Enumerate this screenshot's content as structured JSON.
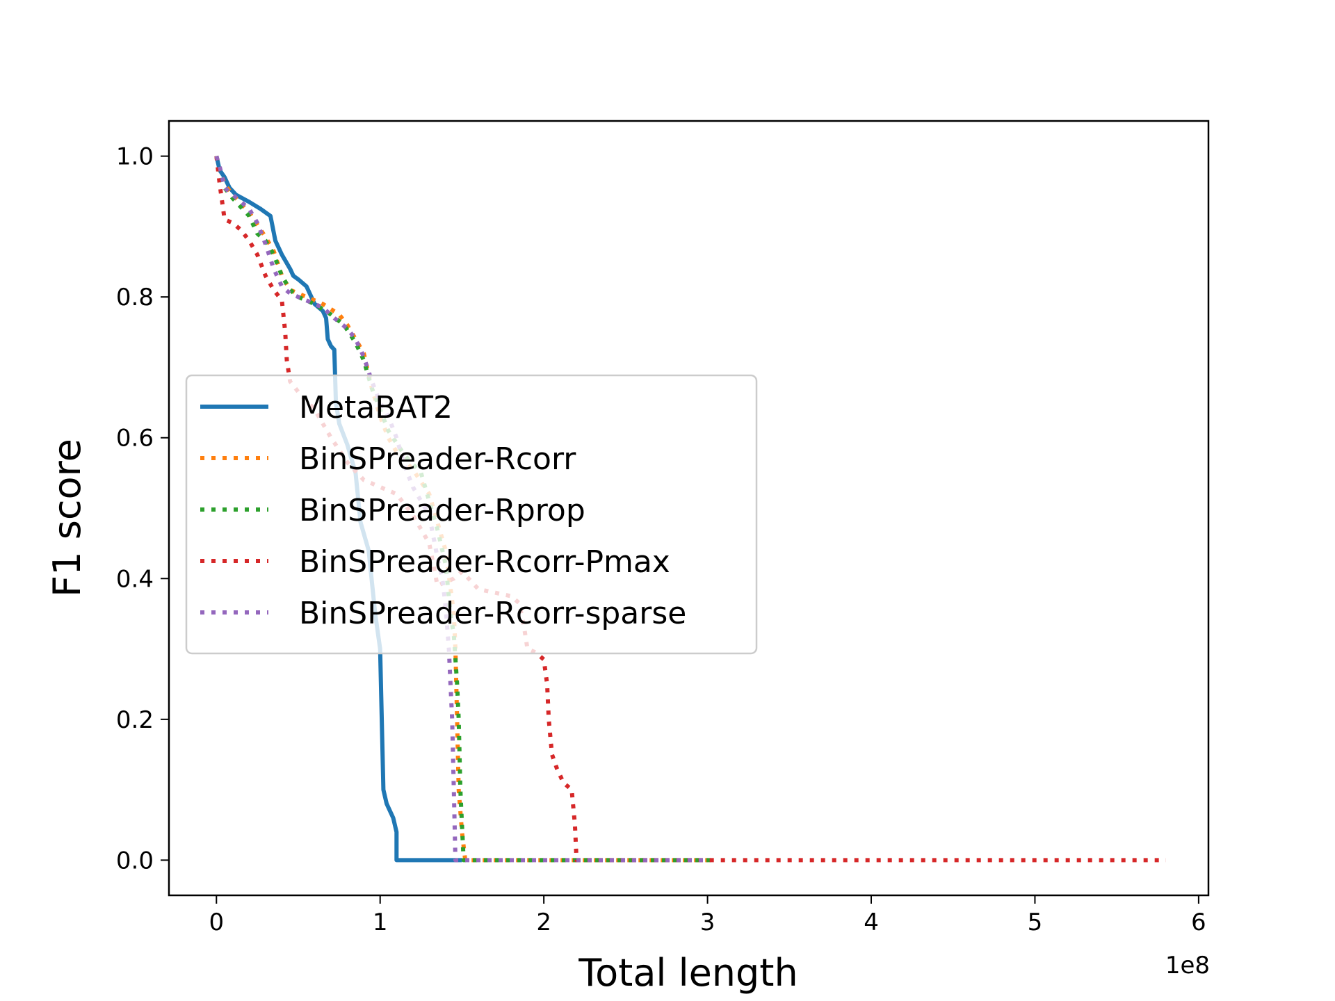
{
  "chart_data": {
    "type": "line",
    "title": "",
    "xlabel": "Total length",
    "ylabel": "F1 score",
    "x_offset_label": "1e8",
    "xlim": [
      -0.29,
      6.06
    ],
    "ylim": [
      -0.05,
      1.05
    ],
    "x_ticks": [
      0,
      1,
      2,
      3,
      4,
      5,
      6
    ],
    "x_tick_labels": [
      "0",
      "1",
      "2",
      "3",
      "4",
      "5",
      "6"
    ],
    "y_ticks": [
      0.0,
      0.2,
      0.4,
      0.6,
      0.8,
      1.0
    ],
    "y_tick_labels": [
      "0.0",
      "0.2",
      "0.4",
      "0.6",
      "0.8",
      "1.0"
    ],
    "grid": false,
    "legend_position": "center-left",
    "series": [
      {
        "name": "MetaBAT2",
        "color": "#1f77b4",
        "style": "solid",
        "points": [
          [
            0,
            1.0
          ],
          [
            0.02,
            0.98
          ],
          [
            0.05,
            0.97
          ],
          [
            0.08,
            0.955
          ],
          [
            0.12,
            0.945
          ],
          [
            0.2,
            0.935
          ],
          [
            0.27,
            0.925
          ],
          [
            0.33,
            0.915
          ],
          [
            0.36,
            0.88
          ],
          [
            0.4,
            0.86
          ],
          [
            0.45,
            0.84
          ],
          [
            0.47,
            0.83
          ],
          [
            0.5,
            0.825
          ],
          [
            0.55,
            0.815
          ],
          [
            0.58,
            0.8
          ],
          [
            0.6,
            0.79
          ],
          [
            0.65,
            0.78
          ],
          [
            0.67,
            0.77
          ],
          [
            0.68,
            0.74
          ],
          [
            0.7,
            0.73
          ],
          [
            0.72,
            0.725
          ],
          [
            0.73,
            0.65
          ],
          [
            0.75,
            0.62
          ],
          [
            0.8,
            0.59
          ],
          [
            0.85,
            0.55
          ],
          [
            0.88,
            0.48
          ],
          [
            0.93,
            0.44
          ],
          [
            0.97,
            0.35
          ],
          [
            1.0,
            0.3
          ],
          [
            1.02,
            0.1
          ],
          [
            1.04,
            0.08
          ],
          [
            1.08,
            0.06
          ],
          [
            1.1,
            0.04
          ],
          [
            1.1,
            0.0
          ],
          [
            1.5,
            0.0
          ]
        ]
      },
      {
        "name": "BinSPreader-Rcorr",
        "color": "#ff7f0e",
        "style": "dotted",
        "points": [
          [
            0,
            1.0
          ],
          [
            0.02,
            0.98
          ],
          [
            0.05,
            0.96
          ],
          [
            0.1,
            0.945
          ],
          [
            0.2,
            0.92
          ],
          [
            0.3,
            0.885
          ],
          [
            0.35,
            0.865
          ],
          [
            0.4,
            0.83
          ],
          [
            0.45,
            0.81
          ],
          [
            0.55,
            0.8
          ],
          [
            0.65,
            0.79
          ],
          [
            0.75,
            0.775
          ],
          [
            0.8,
            0.76
          ],
          [
            0.85,
            0.74
          ],
          [
            0.9,
            0.72
          ],
          [
            0.95,
            0.67
          ],
          [
            1.0,
            0.63
          ],
          [
            1.05,
            0.6
          ],
          [
            1.1,
            0.58
          ],
          [
            1.2,
            0.555
          ],
          [
            1.3,
            0.52
          ],
          [
            1.35,
            0.48
          ],
          [
            1.4,
            0.44
          ],
          [
            1.45,
            0.35
          ],
          [
            1.46,
            0.3
          ],
          [
            1.47,
            0.2
          ],
          [
            1.48,
            0.1
          ],
          [
            1.5,
            0.04
          ],
          [
            1.52,
            0.0
          ],
          [
            3.0,
            0.0
          ]
        ]
      },
      {
        "name": "BinSPreader-Rprop",
        "color": "#2ca02c",
        "style": "dotted",
        "points": [
          [
            0,
            1.0
          ],
          [
            0.02,
            0.975
          ],
          [
            0.05,
            0.955
          ],
          [
            0.1,
            0.94
          ],
          [
            0.2,
            0.915
          ],
          [
            0.25,
            0.89
          ],
          [
            0.3,
            0.88
          ],
          [
            0.35,
            0.86
          ],
          [
            0.4,
            0.83
          ],
          [
            0.45,
            0.81
          ],
          [
            0.5,
            0.8
          ],
          [
            0.6,
            0.79
          ],
          [
            0.7,
            0.775
          ],
          [
            0.78,
            0.76
          ],
          [
            0.85,
            0.735
          ],
          [
            0.9,
            0.71
          ],
          [
            0.95,
            0.67
          ],
          [
            1.0,
            0.64
          ],
          [
            1.05,
            0.61
          ],
          [
            1.15,
            0.575
          ],
          [
            1.25,
            0.55
          ],
          [
            1.3,
            0.51
          ],
          [
            1.35,
            0.47
          ],
          [
            1.4,
            0.42
          ],
          [
            1.43,
            0.35
          ],
          [
            1.45,
            0.32
          ],
          [
            1.47,
            0.25
          ],
          [
            1.48,
            0.2
          ],
          [
            1.49,
            0.1
          ],
          [
            1.5,
            0.05
          ],
          [
            1.51,
            0.0
          ],
          [
            3.05,
            0.0
          ]
        ]
      },
      {
        "name": "BinSPreader-Rcorr-Pmax",
        "color": "#d62728",
        "style": "dotted",
        "points": [
          [
            0,
            1.0
          ],
          [
            0.02,
            0.96
          ],
          [
            0.05,
            0.91
          ],
          [
            0.1,
            0.905
          ],
          [
            0.15,
            0.895
          ],
          [
            0.2,
            0.88
          ],
          [
            0.25,
            0.86
          ],
          [
            0.3,
            0.83
          ],
          [
            0.35,
            0.81
          ],
          [
            0.4,
            0.795
          ],
          [
            0.42,
            0.75
          ],
          [
            0.43,
            0.71
          ],
          [
            0.45,
            0.68
          ],
          [
            0.5,
            0.665
          ],
          [
            0.6,
            0.64
          ],
          [
            0.7,
            0.6
          ],
          [
            0.8,
            0.565
          ],
          [
            0.9,
            0.54
          ],
          [
            1.0,
            0.53
          ],
          [
            1.1,
            0.52
          ],
          [
            1.2,
            0.49
          ],
          [
            1.3,
            0.45
          ],
          [
            1.35,
            0.39
          ],
          [
            1.45,
            0.4
          ],
          [
            1.5,
            0.41
          ],
          [
            1.6,
            0.385
          ],
          [
            1.7,
            0.38
          ],
          [
            1.8,
            0.375
          ],
          [
            1.85,
            0.365
          ],
          [
            1.88,
            0.33
          ],
          [
            1.9,
            0.3
          ],
          [
            1.95,
            0.295
          ],
          [
            2.0,
            0.285
          ],
          [
            2.02,
            0.25
          ],
          [
            2.03,
            0.2
          ],
          [
            2.05,
            0.15
          ],
          [
            2.08,
            0.13
          ],
          [
            2.12,
            0.11
          ],
          [
            2.17,
            0.1
          ],
          [
            2.19,
            0.05
          ],
          [
            2.2,
            0.0
          ],
          [
            5.8,
            0.0
          ]
        ]
      },
      {
        "name": "BinSPreader-Rcorr-sparse",
        "color": "#9467bd",
        "style": "dotted",
        "points": [
          [
            0,
            1.0
          ],
          [
            0.02,
            0.985
          ],
          [
            0.05,
            0.955
          ],
          [
            0.1,
            0.945
          ],
          [
            0.2,
            0.925
          ],
          [
            0.25,
            0.905
          ],
          [
            0.3,
            0.875
          ],
          [
            0.35,
            0.84
          ],
          [
            0.4,
            0.815
          ],
          [
            0.45,
            0.805
          ],
          [
            0.55,
            0.795
          ],
          [
            0.65,
            0.785
          ],
          [
            0.72,
            0.77
          ],
          [
            0.8,
            0.755
          ],
          [
            0.85,
            0.74
          ],
          [
            0.9,
            0.715
          ],
          [
            0.95,
            0.68
          ],
          [
            1.0,
            0.65
          ],
          [
            1.05,
            0.63
          ],
          [
            1.1,
            0.6
          ],
          [
            1.15,
            0.56
          ],
          [
            1.2,
            0.53
          ],
          [
            1.25,
            0.51
          ],
          [
            1.3,
            0.49
          ],
          [
            1.35,
            0.43
          ],
          [
            1.38,
            0.4
          ],
          [
            1.4,
            0.36
          ],
          [
            1.42,
            0.3
          ],
          [
            1.43,
            0.25
          ],
          [
            1.44,
            0.2
          ],
          [
            1.45,
            0.1
          ],
          [
            1.46,
            0.0
          ],
          [
            3.0,
            0.0
          ]
        ]
      }
    ]
  }
}
